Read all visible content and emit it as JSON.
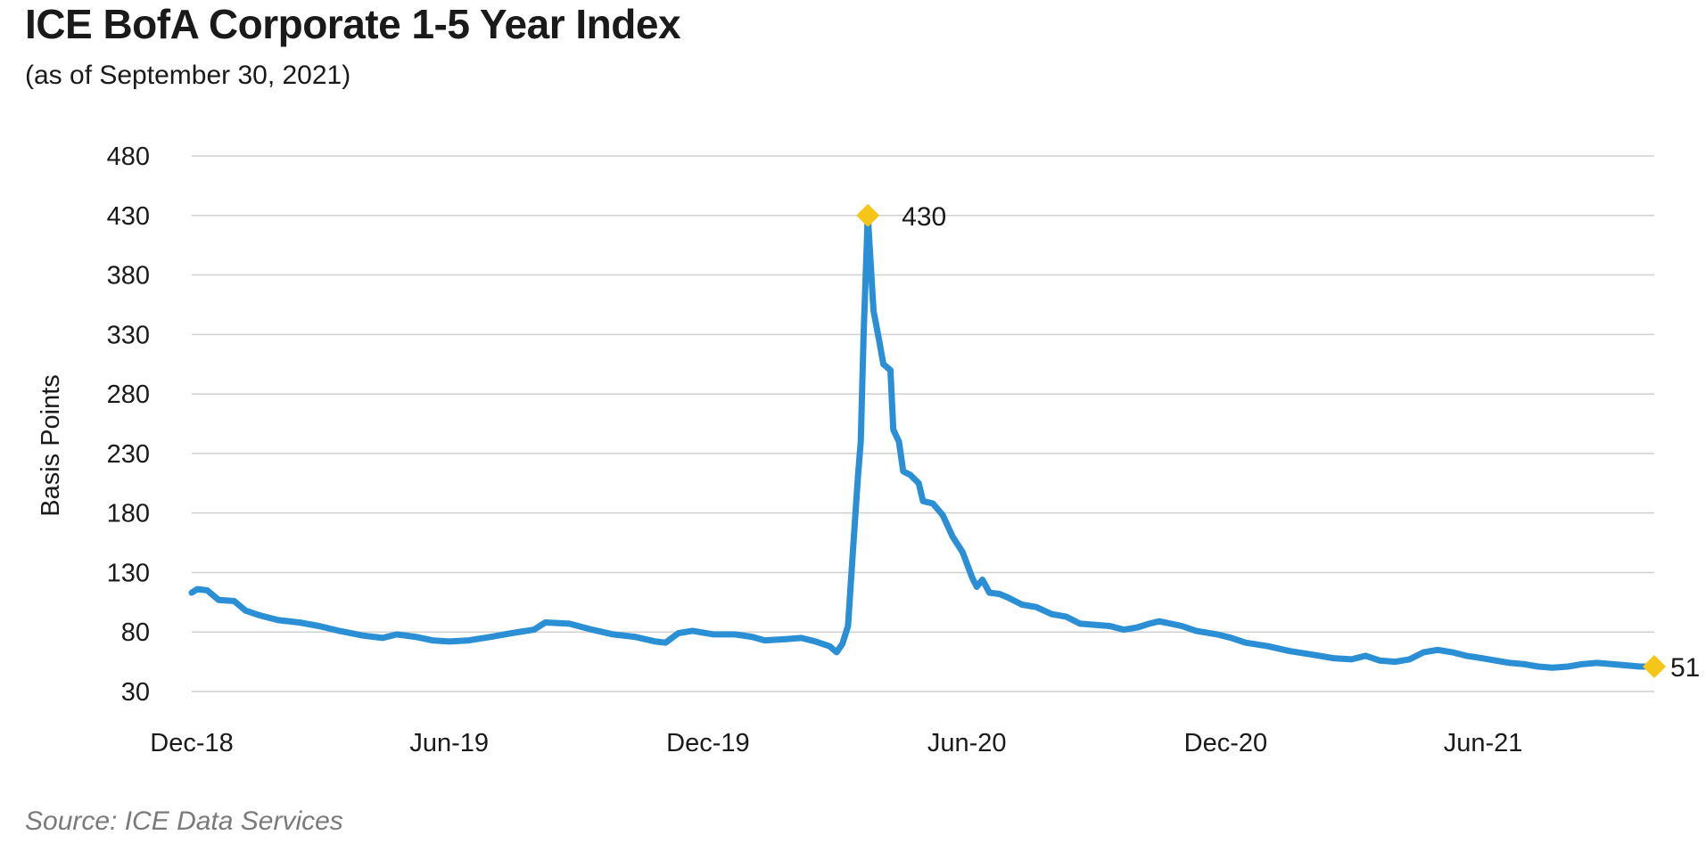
{
  "page": {
    "title": "ICE BofA Corporate 1-5 Year Index",
    "subtitle": "(as of September 30, 2021)",
    "source": "Source: ICE Data Services"
  },
  "chart_data": {
    "type": "line",
    "title": "ICE BofA Corporate 1-5 Year Index",
    "subtitle": "(as of September 30, 2021)",
    "ylabel": "Basis Points",
    "xlabel": "",
    "ylim": [
      30,
      480
    ],
    "yticks": [
      480,
      430,
      380,
      330,
      280,
      230,
      180,
      130,
      80,
      30
    ],
    "xticks": [
      "Dec-18",
      "Jun-19",
      "Dec-19",
      "Jun-20",
      "Dec-20",
      "Jun-21"
    ],
    "xlim": [
      "2018-12-01",
      "2021-09-30"
    ],
    "grid": true,
    "line_color": "#2b8fd6",
    "marker_color": "#f5c518",
    "annotations": [
      {
        "date": "2020-03-23",
        "value": 430,
        "label": "430"
      },
      {
        "date": "2021-09-30",
        "value": 51,
        "label": "51"
      }
    ],
    "series": [
      {
        "values": [
          [
            "2018-12-01",
            113
          ],
          [
            "2018-12-05",
            116
          ],
          [
            "2018-12-12",
            115
          ],
          [
            "2018-12-20",
            107
          ],
          [
            "2018-12-31",
            106
          ],
          [
            "2019-01-08",
            98
          ],
          [
            "2019-01-18",
            94
          ],
          [
            "2019-01-31",
            90
          ],
          [
            "2019-02-15",
            88
          ],
          [
            "2019-03-01",
            85
          ],
          [
            "2019-03-15",
            81
          ],
          [
            "2019-04-01",
            77
          ],
          [
            "2019-04-15",
            75
          ],
          [
            "2019-04-25",
            78
          ],
          [
            "2019-05-08",
            76
          ],
          [
            "2019-05-20",
            73
          ],
          [
            "2019-06-01",
            72
          ],
          [
            "2019-06-15",
            73
          ],
          [
            "2019-07-01",
            76
          ],
          [
            "2019-07-15",
            79
          ],
          [
            "2019-07-31",
            82
          ],
          [
            "2019-08-08",
            88
          ],
          [
            "2019-08-25",
            87
          ],
          [
            "2019-09-10",
            82
          ],
          [
            "2019-09-25",
            78
          ],
          [
            "2019-10-10",
            76
          ],
          [
            "2019-10-25",
            72
          ],
          [
            "2019-11-01",
            71
          ],
          [
            "2019-11-10",
            79
          ],
          [
            "2019-11-20",
            81
          ],
          [
            "2019-12-05",
            78
          ],
          [
            "2019-12-20",
            78
          ],
          [
            "2020-01-01",
            76
          ],
          [
            "2020-01-10",
            73
          ],
          [
            "2020-01-25",
            74
          ],
          [
            "2020-02-05",
            75
          ],
          [
            "2020-02-15",
            72
          ],
          [
            "2020-02-25",
            68
          ],
          [
            "2020-03-01",
            63
          ],
          [
            "2020-03-05",
            70
          ],
          [
            "2020-03-09",
            85
          ],
          [
            "2020-03-12",
            140
          ],
          [
            "2020-03-16",
            210
          ],
          [
            "2020-03-18",
            240
          ],
          [
            "2020-03-20",
            330
          ],
          [
            "2020-03-23",
            430
          ],
          [
            "2020-03-25",
            390
          ],
          [
            "2020-03-27",
            350
          ],
          [
            "2020-03-31",
            325
          ],
          [
            "2020-04-03",
            305
          ],
          [
            "2020-04-08",
            300
          ],
          [
            "2020-04-10",
            250
          ],
          [
            "2020-04-14",
            240
          ],
          [
            "2020-04-17",
            215
          ],
          [
            "2020-04-22",
            212
          ],
          [
            "2020-04-28",
            205
          ],
          [
            "2020-05-01",
            190
          ],
          [
            "2020-05-08",
            188
          ],
          [
            "2020-05-15",
            178
          ],
          [
            "2020-05-22",
            160
          ],
          [
            "2020-05-29",
            147
          ],
          [
            "2020-06-05",
            125
          ],
          [
            "2020-06-08",
            118
          ],
          [
            "2020-06-12",
            124
          ],
          [
            "2020-06-17",
            113
          ],
          [
            "2020-06-24",
            112
          ],
          [
            "2020-06-30",
            109
          ],
          [
            "2020-07-10",
            103
          ],
          [
            "2020-07-20",
            101
          ],
          [
            "2020-07-31",
            95
          ],
          [
            "2020-08-10",
            93
          ],
          [
            "2020-08-20",
            87
          ],
          [
            "2020-08-31",
            86
          ],
          [
            "2020-09-10",
            85
          ],
          [
            "2020-09-20",
            82
          ],
          [
            "2020-09-30",
            84
          ],
          [
            "2020-10-08",
            87
          ],
          [
            "2020-10-15",
            89
          ],
          [
            "2020-10-31",
            85
          ],
          [
            "2020-11-10",
            81
          ],
          [
            "2020-11-25",
            78
          ],
          [
            "2020-12-05",
            75
          ],
          [
            "2020-12-15",
            71
          ],
          [
            "2020-12-31",
            68
          ],
          [
            "2021-01-15",
            64
          ],
          [
            "2021-01-31",
            61
          ],
          [
            "2021-02-15",
            58
          ],
          [
            "2021-02-28",
            57
          ],
          [
            "2021-03-10",
            60
          ],
          [
            "2021-03-20",
            56
          ],
          [
            "2021-03-31",
            55
          ],
          [
            "2021-04-10",
            57
          ],
          [
            "2021-04-20",
            63
          ],
          [
            "2021-04-30",
            65
          ],
          [
            "2021-05-10",
            63
          ],
          [
            "2021-05-20",
            60
          ],
          [
            "2021-05-31",
            58
          ],
          [
            "2021-06-10",
            56
          ],
          [
            "2021-06-20",
            54
          ],
          [
            "2021-06-30",
            53
          ],
          [
            "2021-07-10",
            51
          ],
          [
            "2021-07-20",
            50
          ],
          [
            "2021-07-31",
            51
          ],
          [
            "2021-08-10",
            53
          ],
          [
            "2021-08-20",
            54
          ],
          [
            "2021-08-31",
            53
          ],
          [
            "2021-09-10",
            52
          ],
          [
            "2021-09-20",
            51
          ],
          [
            "2021-09-30",
            51
          ]
        ]
      }
    ]
  }
}
